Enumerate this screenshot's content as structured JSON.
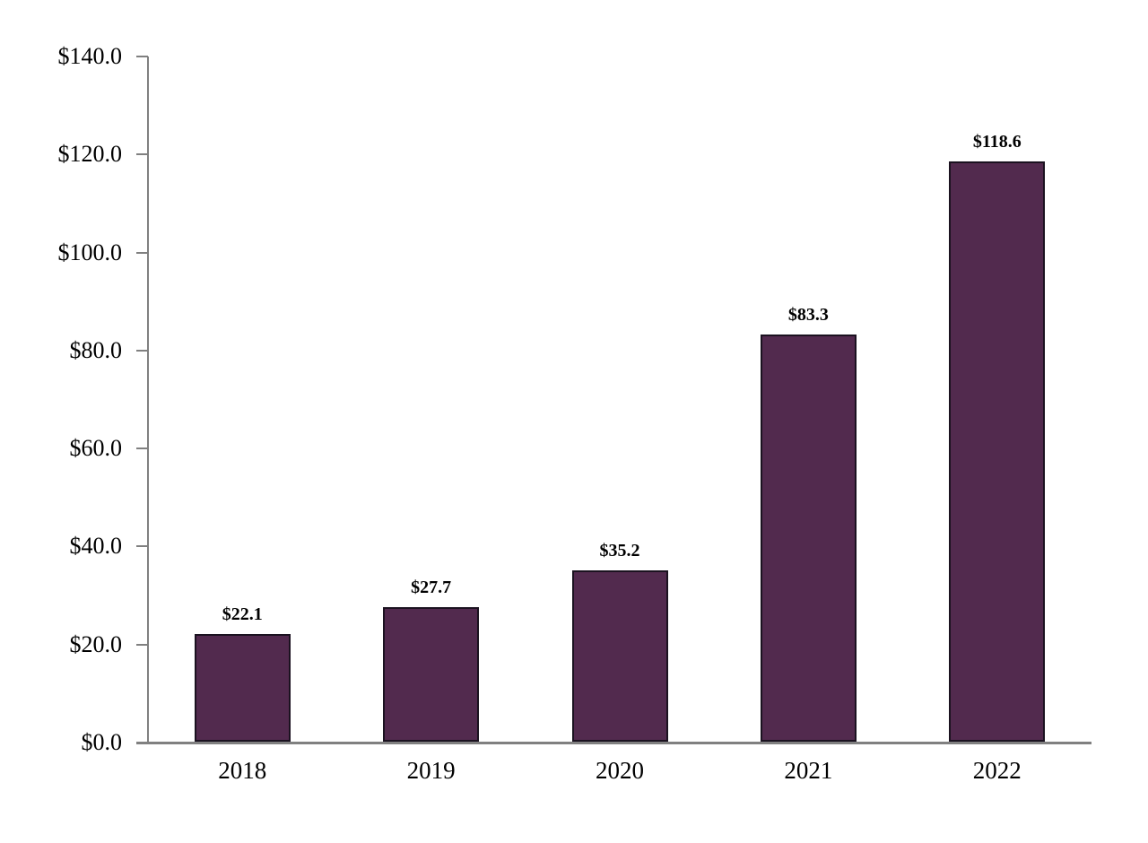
{
  "chart_data": {
    "type": "bar",
    "title": "",
    "xlabel": "",
    "ylabel": "",
    "categories": [
      "2018",
      "2019",
      "2020",
      "2021",
      "2022"
    ],
    "values": [
      22.1,
      27.7,
      35.2,
      83.3,
      118.6
    ],
    "data_labels": [
      "$22.1",
      "$27.7",
      "$35.2",
      "$83.3",
      "$118.6"
    ],
    "ylim": [
      0,
      140
    ],
    "y_tick_step": 20,
    "y_tick_labels": [
      "$0.0",
      "$20.0",
      "$40.0",
      "$60.0",
      "$80.0",
      "$100.0",
      "$120.0",
      "$140.0"
    ],
    "grid": false,
    "legend": false,
    "colors": {
      "bar_fill": "#522A4E",
      "bar_border": "#1B1220",
      "axis": "#808080",
      "text": "#000000"
    }
  }
}
